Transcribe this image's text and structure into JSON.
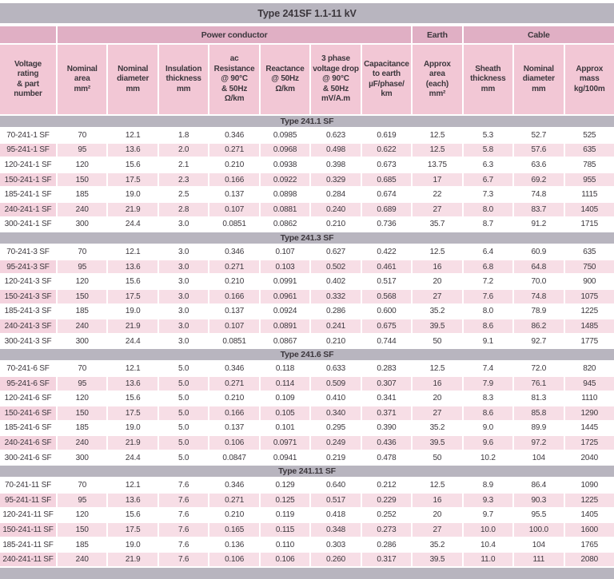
{
  "colors": {
    "band-gray": "#b8b5bf",
    "group-pink": "#e0afc4",
    "header-pink": "#f2c7d5",
    "row-pink": "#f7dee6",
    "row-pink-first": "#f4d3de",
    "text-dark": "#3c373d"
  },
  "table": {
    "title": "Type 241SF  1.1-11 kV",
    "groups": [
      {
        "label": "",
        "span": 1
      },
      {
        "label": "Power conductor",
        "span": 7
      },
      {
        "label": "Earth",
        "span": 1
      },
      {
        "label": "Cable",
        "span": 3
      }
    ],
    "columns": [
      "Voltage\nrating\n& part\nnumber",
      "Nominal\narea\nmm²",
      "Nominal\ndiameter\nmm",
      "Insulation\nthickness\nmm",
      "ac\nResistance\n@ 90°C\n& 50Hz\nΩ/km",
      "Reactance\n@ 50Hz\nΩ/km",
      "3 phase\nvoltage drop\n@ 90°C\n& 50Hz\nmV/A.m",
      "Capacitance\nto earth\nµF/phase/\nkm",
      "Approx\narea\n(each)\nmm²",
      "Sheath\nthickness\nmm",
      "Nominal\ndiameter\nmm",
      "Approx\nmass\nkg/100m"
    ],
    "sections": [
      {
        "label": "Type 241.1 SF",
        "rows": [
          [
            "70-241-1 SF",
            "70",
            "12.1",
            "1.8",
            "0.346",
            "0.0985",
            "0.623",
            "0.619",
            "12.5",
            "5.3",
            "52.7",
            "525"
          ],
          [
            "95-241-1 SF",
            "95",
            "13.6",
            "2.0",
            "0.271",
            "0.0968",
            "0.498",
            "0.622",
            "12.5",
            "5.8",
            "57.6",
            "635"
          ],
          [
            "120-241-1 SF",
            "120",
            "15.6",
            "2.1",
            "0.210",
            "0.0938",
            "0.398",
            "0.673",
            "13.75",
            "6.3",
            "63.6",
            "785"
          ],
          [
            "150-241-1 SF",
            "150",
            "17.5",
            "2.3",
            "0.166",
            "0.0922",
            "0.329",
            "0.685",
            "17",
            "6.7",
            "69.2",
            "955"
          ],
          [
            "185-241-1 SF",
            "185",
            "19.0",
            "2.5",
            "0.137",
            "0.0898",
            "0.284",
            "0.674",
            "22",
            "7.3",
            "74.8",
            "1115"
          ],
          [
            "240-241-1 SF",
            "240",
            "21.9",
            "2.8",
            "0.107",
            "0.0881",
            "0.240",
            "0.689",
            "27",
            "8.0",
            "83.7",
            "1405"
          ],
          [
            "300-241-1 SF",
            "300",
            "24.4",
            "3.0",
            "0.0851",
            "0.0862",
            "0.210",
            "0.736",
            "35.7",
            "8.7",
            "91.2",
            "1715"
          ]
        ]
      },
      {
        "label": "Type 241.3 SF",
        "rows": [
          [
            "70-241-3 SF",
            "70",
            "12.1",
            "3.0",
            "0.346",
            "0.107",
            "0.627",
            "0.422",
            "12.5",
            "6.4",
            "60.9",
            "635"
          ],
          [
            "95-241-3 SF",
            "95",
            "13.6",
            "3.0",
            "0.271",
            "0.103",
            "0.502",
            "0.461",
            "16",
            "6.8",
            "64.8",
            "750"
          ],
          [
            "120-241-3 SF",
            "120",
            "15.6",
            "3.0",
            "0.210",
            "0.0991",
            "0.402",
            "0.517",
            "20",
            "7.2",
            "70.0",
            "900"
          ],
          [
            "150-241-3 SF",
            "150",
            "17.5",
            "3.0",
            "0.166",
            "0.0961",
            "0.332",
            "0.568",
            "27",
            "7.6",
            "74.8",
            "1075"
          ],
          [
            "185-241-3 SF",
            "185",
            "19.0",
            "3.0",
            "0.137",
            "0.0924",
            "0.286",
            "0.600",
            "35.2",
            "8.0",
            "78.9",
            "1225"
          ],
          [
            "240-241-3 SF",
            "240",
            "21.9",
            "3.0",
            "0.107",
            "0.0891",
            "0.241",
            "0.675",
            "39.5",
            "8.6",
            "86.2",
            "1485"
          ],
          [
            "300-241-3 SF",
            "300",
            "24.4",
            "3.0",
            "0.0851",
            "0.0867",
            "0.210",
            "0.744",
            "50",
            "9.1",
            "92.7",
            "1775"
          ]
        ]
      },
      {
        "label": "Type 241.6 SF",
        "rows": [
          [
            "70-241-6 SF",
            "70",
            "12.1",
            "5.0",
            "0.346",
            "0.118",
            "0.633",
            "0.283",
            "12.5",
            "7.4",
            "72.0",
            "820"
          ],
          [
            "95-241-6 SF",
            "95",
            "13.6",
            "5.0",
            "0.271",
            "0.114",
            "0.509",
            "0.307",
            "16",
            "7.9",
            "76.1",
            "945"
          ],
          [
            "120-241-6 SF",
            "120",
            "15.6",
            "5.0",
            "0.210",
            "0.109",
            "0.410",
            "0.341",
            "20",
            "8.3",
            "81.3",
            "1110"
          ],
          [
            "150-241-6 SF",
            "150",
            "17.5",
            "5.0",
            "0.166",
            "0.105",
            "0.340",
            "0.371",
            "27",
            "8.6",
            "85.8",
            "1290"
          ],
          [
            "185-241-6 SF",
            "185",
            "19.0",
            "5.0",
            "0.137",
            "0.101",
            "0.295",
            "0.390",
            "35.2",
            "9.0",
            "89.9",
            "1445"
          ],
          [
            "240-241-6 SF",
            "240",
            "21.9",
            "5.0",
            "0.106",
            "0.0971",
            "0.249",
            "0.436",
            "39.5",
            "9.6",
            "97.2",
            "1725"
          ],
          [
            "300-241-6 SF",
            "300",
            "24.4",
            "5.0",
            "0.0847",
            "0.0941",
            "0.219",
            "0.478",
            "50",
            "10.2",
            "104",
            "2040"
          ]
        ]
      },
      {
        "label": "Type 241.11 SF",
        "rows": [
          [
            "70-241-11 SF",
            "70",
            "12.1",
            "7.6",
            "0.346",
            "0.129",
            "0.640",
            "0.212",
            "12.5",
            "8.9",
            "86.4",
            "1090"
          ],
          [
            "95-241-11 SF",
            "95",
            "13.6",
            "7.6",
            "0.271",
            "0.125",
            "0.517",
            "0.229",
            "16",
            "9.3",
            "90.3",
            "1225"
          ],
          [
            "120-241-11 SF",
            "120",
            "15.6",
            "7.6",
            "0.210",
            "0.119",
            "0.418",
            "0.252",
            "20",
            "9.7",
            "95.5",
            "1405"
          ],
          [
            "150-241-11 SF",
            "150",
            "17.5",
            "7.6",
            "0.165",
            "0.115",
            "0.348",
            "0.273",
            "27",
            "10.0",
            "100.0",
            "1600"
          ],
          [
            "185-241-11 SF",
            "185",
            "19.0",
            "7.6",
            "0.136",
            "0.110",
            "0.303",
            "0.286",
            "35.2",
            "10.4",
            "104",
            "1765"
          ],
          [
            "240-241-11 SF",
            "240",
            "21.9",
            "7.6",
            "0.106",
            "0.106",
            "0.260",
            "0.317",
            "39.5",
            "11.0",
            "111",
            "2080"
          ]
        ]
      }
    ]
  }
}
